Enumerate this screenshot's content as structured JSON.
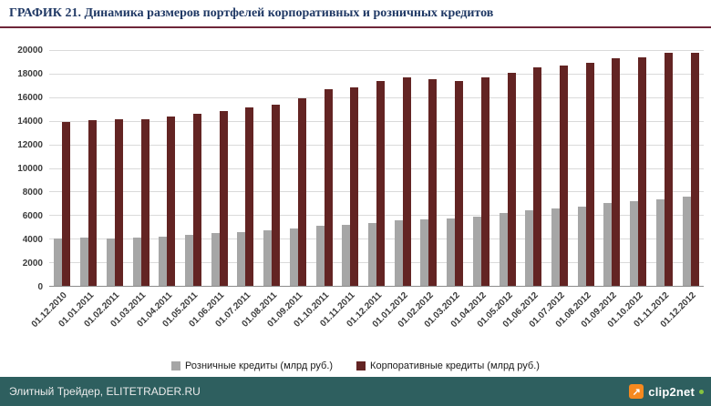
{
  "header": {
    "title": "ГРАФИК 21. Динамика размеров портфелей корпоративных и розничных кредитов",
    "rule_color": "#6e2639"
  },
  "chart_data": {
    "type": "bar",
    "title": "Динамика размеров портфелей корпоративных и розничных кредитов",
    "xlabel": "",
    "ylabel": "",
    "ylim": [
      0,
      20000
    ],
    "ytick_step": 2000,
    "grid": true,
    "legend_position": "bottom",
    "categories": [
      "01.12.2010",
      "01.01.2011",
      "01.02.2011",
      "01.03.2011",
      "01.04.2011",
      "01.05.2011",
      "01.06.2011",
      "01.07.2011",
      "01.08.2011",
      "01.09.2011",
      "01.10.2011",
      "01.11.2011",
      "01.12.2011",
      "01.01.2012",
      "01.02.2012",
      "01.03.2012",
      "01.04.2012",
      "01.05.2012",
      "01.06.2012",
      "01.07.2012",
      "01.08.2012",
      "01.09.2012",
      "01.10.2012",
      "01.11.2012",
      "01.12.2012"
    ],
    "series": [
      {
        "key": "retail",
        "name": "Розничные кредиты (млрд руб.)",
        "color": "#a6a6a6",
        "values": [
          4050,
          4100,
          4050,
          4100,
          4200,
          4350,
          4450,
          4550,
          4750,
          4900,
          5100,
          5200,
          5350,
          5550,
          5600,
          5700,
          5900,
          6150,
          6400,
          6550,
          6750,
          7000,
          7150,
          7350,
          7550
        ]
      },
      {
        "key": "corporate",
        "name": "Корпоративные кредиты (млрд руб.)",
        "color": "#632423",
        "values": [
          13900,
          14050,
          14100,
          14150,
          14350,
          14600,
          14850,
          15100,
          15400,
          15900,
          16700,
          16850,
          17400,
          17650,
          17500,
          17350,
          17650,
          18100,
          18500,
          18700,
          18900,
          19300,
          19400,
          19750,
          19800
        ]
      }
    ]
  },
  "footer": {
    "credit": "Элитный Трейдер, ELITETRADER.RU",
    "logo": {
      "text": "clip2net",
      "icon_glyph": "↗",
      "accent": "#f6891f",
      "green": "#86c440"
    }
  }
}
